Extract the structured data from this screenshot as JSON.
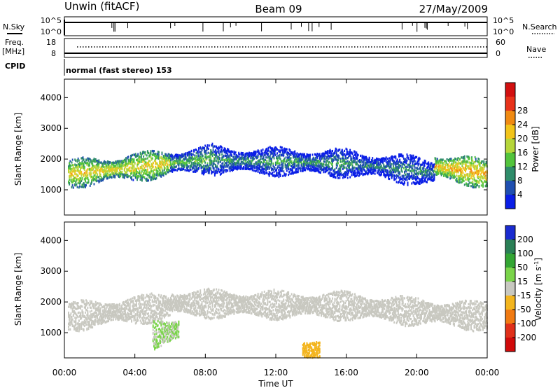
{
  "header": {
    "station": "Unwin (fitACF)",
    "beam": "Beam 09",
    "date": "27/May/2009"
  },
  "left_labels": {
    "nsky": "N.Sky",
    "freq_line1": "Freq.",
    "freq_line2": "[MHz]",
    "cpid": "CPID",
    "nsky_ticks": [
      "10^5",
      "10^0"
    ],
    "freq_ticks": [
      "18",
      "8"
    ]
  },
  "right_labels": {
    "nsearch": "N.Search",
    "nave": "Nave",
    "nsearch_ticks": [
      "10^5",
      "10^0"
    ],
    "nave_ticks": [
      "60",
      "0"
    ]
  },
  "cpid_text": "normal (fast stereo) 153",
  "colors": {
    "power_scale": [
      "#0a1ee6",
      "#1f4fb0",
      "#2e8c6a",
      "#53c43c",
      "#b6d63a",
      "#f2c41a",
      "#f08a12",
      "#e8321a",
      "#d21010"
    ],
    "velocity_scale": [
      "#1a2bd0",
      "#2a7f56",
      "#33a533",
      "#7ad44a",
      "#c8c8c0",
      "#f3b51e",
      "#f07a12",
      "#e0301a",
      "#d00a0a"
    ]
  },
  "chart_data": [
    {
      "type": "heatmap",
      "title": "",
      "xlabel": "Time UT",
      "ylabel": "Slant Range [km]",
      "x_ticks": [
        "00:00",
        "04:00",
        "08:00",
        "12:00",
        "16:00",
        "20:00",
        "00:00"
      ],
      "xlim_hours": [
        0,
        24
      ],
      "y_ticks": [
        "1000",
        "2000",
        "3000",
        "4000"
      ],
      "ylim": [
        180,
        4600
      ],
      "colorbar": {
        "label": "Power [dB]",
        "ticks": [
          "4",
          "8",
          "12",
          "16",
          "20",
          "24",
          "28"
        ],
        "range": [
          0,
          30
        ]
      },
      "echo_bands": [
        {
          "x": [
            0.2,
            6.0
          ],
          "center_km": [
            1500,
            1850
          ],
          "value": 18
        },
        {
          "x": [
            6.0,
            8.5
          ],
          "center_km": [
            1850,
            2000
          ],
          "value": 12
        },
        {
          "x": [
            8.5,
            16.0
          ],
          "center_km": [
            1950,
            1850
          ],
          "value": 10
        },
        {
          "x": [
            16.0,
            21.0
          ],
          "center_km": [
            1850,
            1550
          ],
          "value": 9
        },
        {
          "x": [
            21.0,
            24.0
          ],
          "center_km": [
            1750,
            1500
          ],
          "value": 20
        }
      ]
    },
    {
      "type": "heatmap",
      "title": "",
      "xlabel": "Time UT",
      "ylabel": "Slant Range [km]",
      "x_ticks": [
        "00:00",
        "04:00",
        "08:00",
        "12:00",
        "16:00",
        "20:00",
        "00:00"
      ],
      "xlim_hours": [
        0,
        24
      ],
      "y_ticks": [
        "1000",
        "2000",
        "3000",
        "4000"
      ],
      "ylim": [
        180,
        4600
      ],
      "colorbar": {
        "label": "Velocity [m s^-1]",
        "ticks": [
          "200",
          "100",
          "50",
          "15",
          "-15",
          "-50",
          "-100",
          "-200"
        ],
        "range": [
          -250,
          250
        ]
      },
      "echo_bands": [
        {
          "x": [
            0.2,
            6.0
          ],
          "center_km": [
            1500,
            1850
          ],
          "value": 0
        },
        {
          "x": [
            6.0,
            16.0
          ],
          "center_km": [
            1950,
            1850
          ],
          "value": 0
        },
        {
          "x": [
            16.0,
            24.0
          ],
          "center_km": [
            1850,
            1500
          ],
          "value": 0
        },
        {
          "x": [
            5.0,
            6.5
          ],
          "center_km": [
            900,
            1100
          ],
          "value": 30
        },
        {
          "x": [
            13.5,
            14.5
          ],
          "center_km": [
            400,
            400
          ],
          "value": -40
        }
      ]
    }
  ]
}
